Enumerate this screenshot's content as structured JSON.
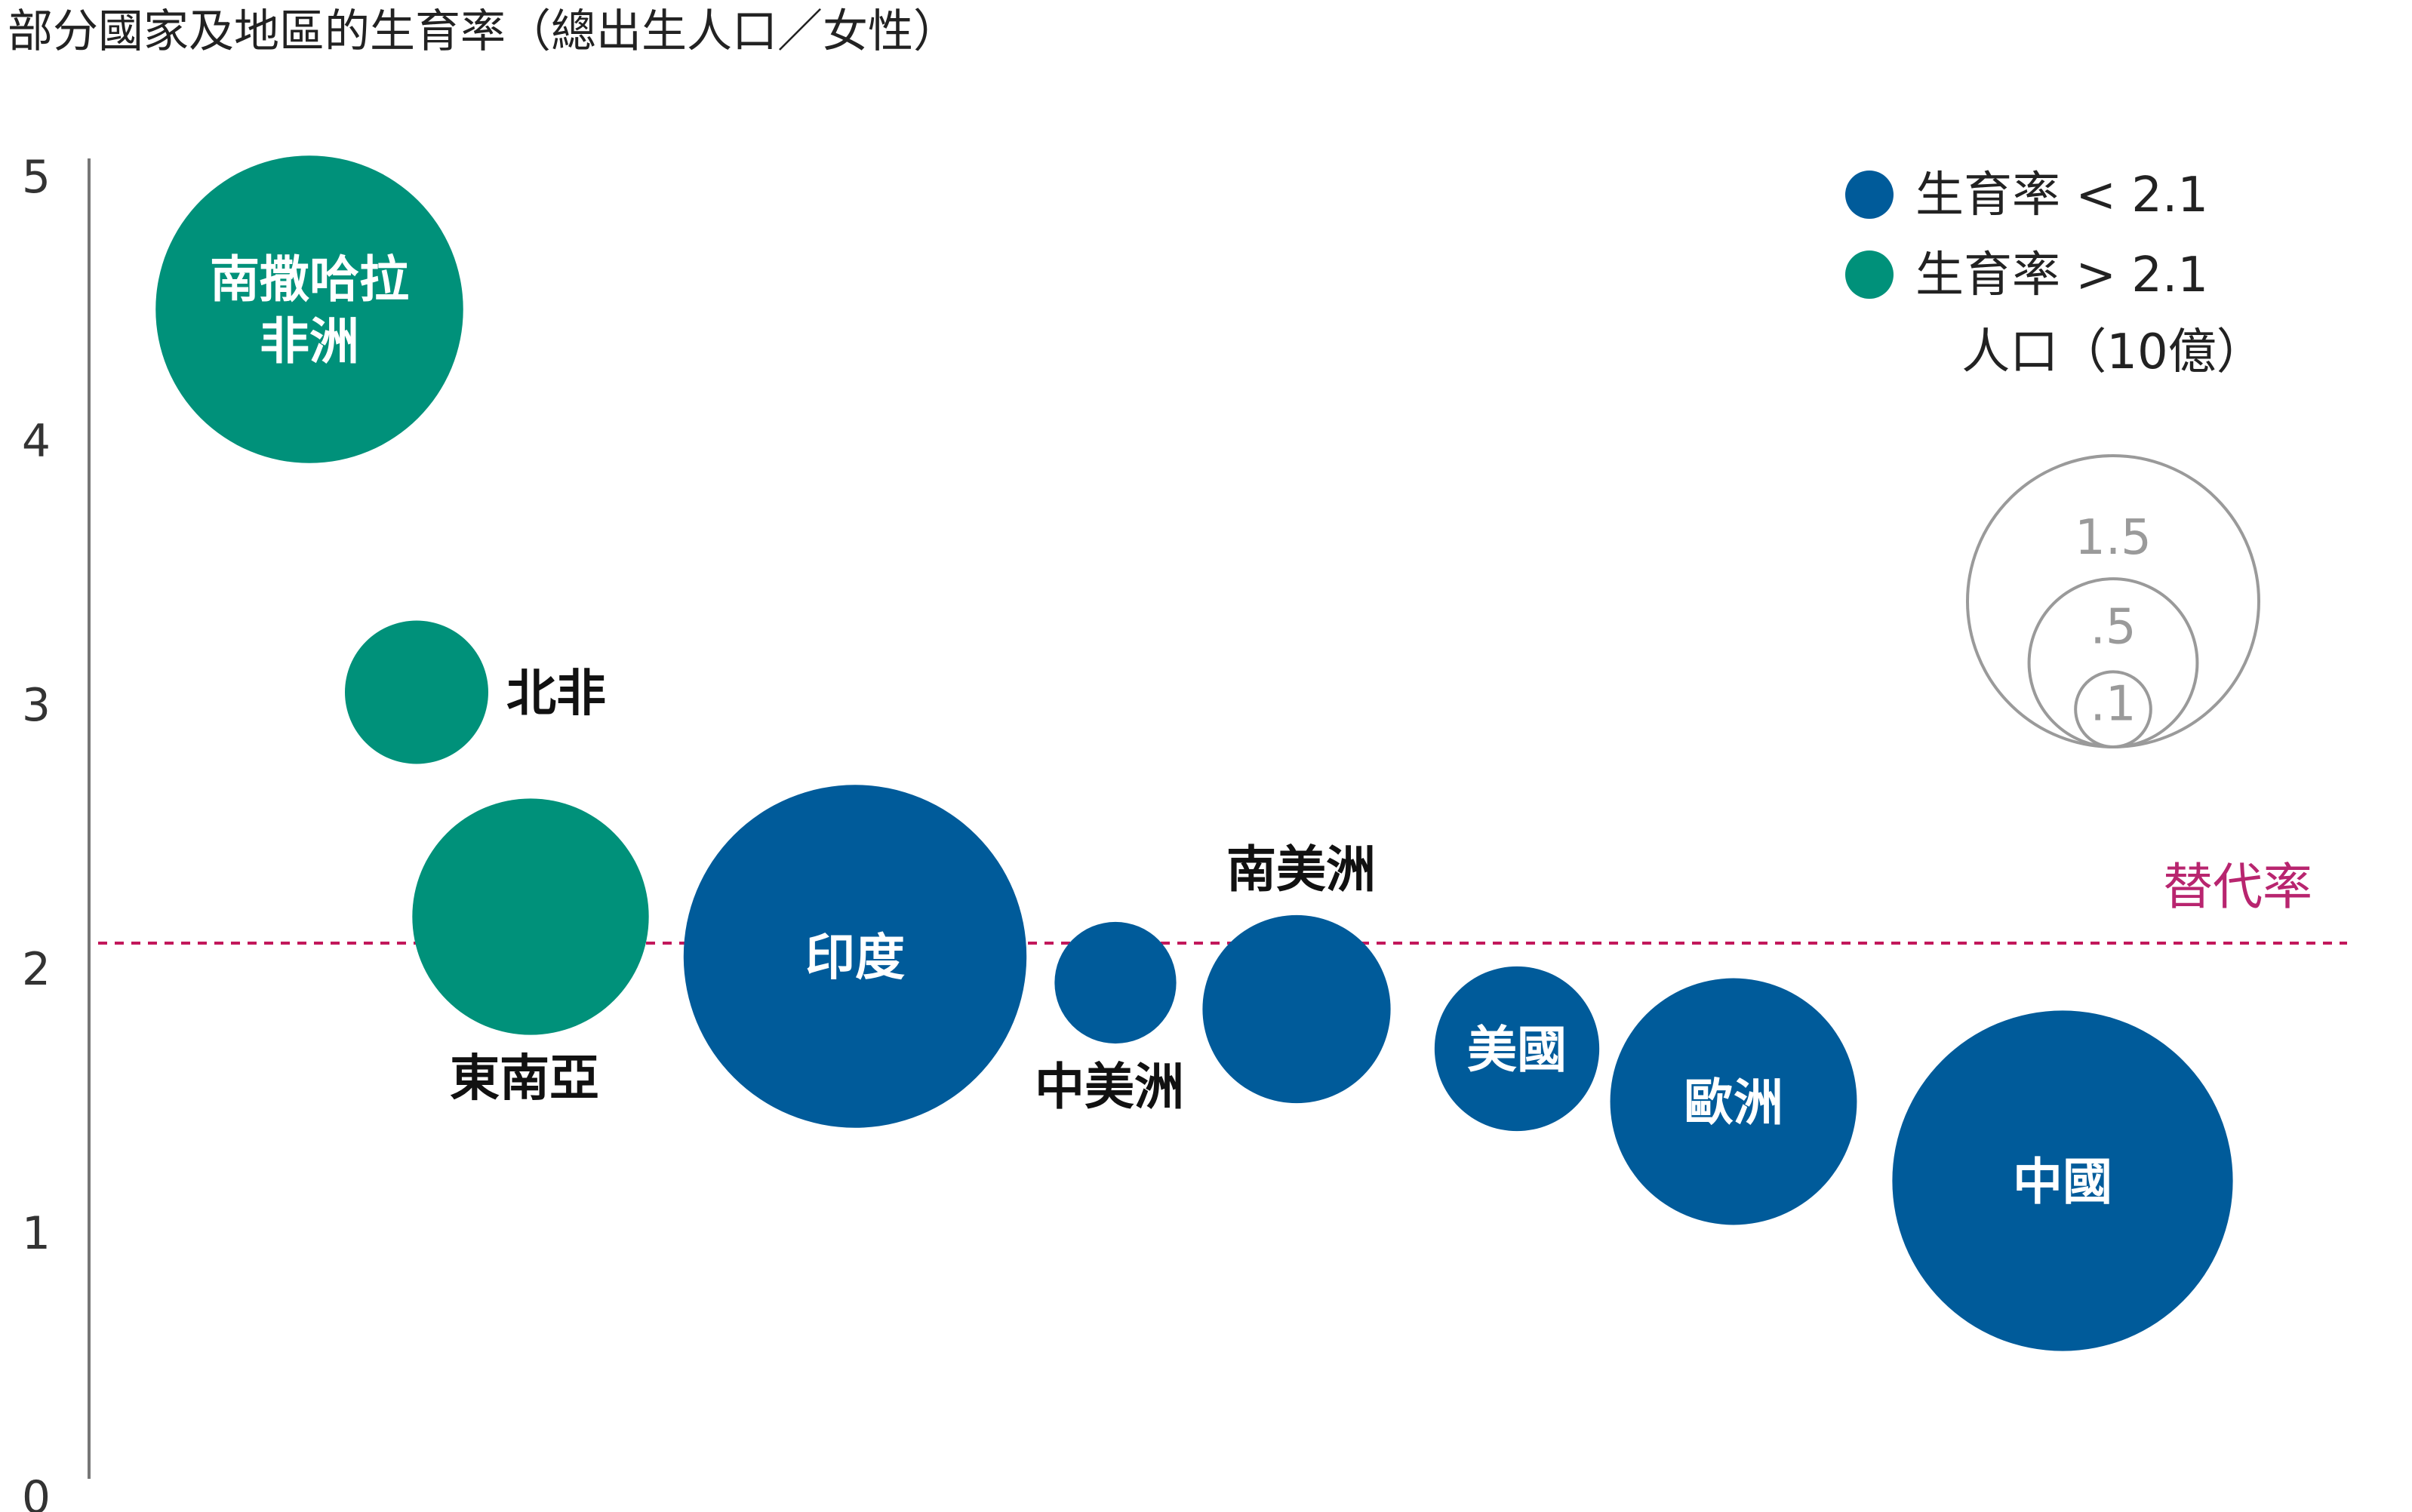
{
  "chart_data": {
    "type": "scatter",
    "title": "部分國家及地區的生育率（總出生人口／女性）",
    "ylim": [
      0,
      5
    ],
    "yticks": [
      "0",
      "1",
      "2",
      "3",
      "4",
      "5"
    ],
    "grid": false,
    "colors": {
      "below": "#005b9a",
      "above": "#00917a",
      "reference": "#c2185b"
    },
    "series": [
      {
        "label": "南撒哈拉非洲",
        "label_lines": [
          "南撒哈拉",
          "非洲"
        ],
        "y": 4.5,
        "population": 1.15,
        "group": "above",
        "label_pos": "inside"
      },
      {
        "label": "北非",
        "y": 3.05,
        "population": 0.25,
        "group": "above",
        "label_pos": "right"
      },
      {
        "label": "東南亞",
        "y": 2.2,
        "population": 0.68,
        "group": "above",
        "label_pos": "below"
      },
      {
        "label": "印度",
        "y": 2.05,
        "population": 1.43,
        "group": "below",
        "label_pos": "inside"
      },
      {
        "label": "中美洲",
        "y": 1.95,
        "population": 0.18,
        "group": "below",
        "label_pos": "below"
      },
      {
        "label": "南美洲",
        "y": 1.85,
        "population": 0.43,
        "group": "below",
        "label_pos": "above"
      },
      {
        "label": "美國",
        "y": 1.7,
        "population": 0.33,
        "group": "below",
        "label_pos": "inside"
      },
      {
        "label": "歐洲",
        "y": 1.5,
        "population": 0.74,
        "group": "below",
        "label_pos": "inside"
      },
      {
        "label": "中國",
        "y": 1.2,
        "population": 1.41,
        "group": "below",
        "label_pos": "inside"
      }
    ],
    "reference_line": {
      "y": 2.1,
      "label": "替代率"
    },
    "legend": {
      "items": [
        {
          "label": "生育率 < 2.1",
          "group": "below"
        },
        {
          "label": "生育率 > 2.1",
          "group": "above"
        }
      ],
      "size_title": "人口（10億）",
      "size_values": [
        {
          "label": "1.5",
          "value": 1.5
        },
        {
          "label": ".5",
          "value": 0.5
        },
        {
          "label": ".1",
          "value": 0.1
        }
      ],
      "position": "top-right"
    }
  }
}
